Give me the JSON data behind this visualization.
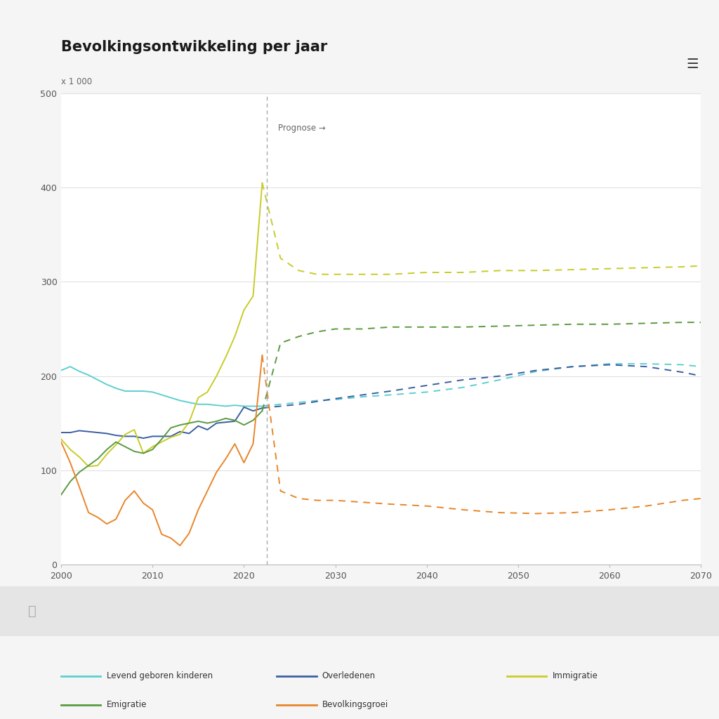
{
  "title": "Bevolkingsontwikkeling per jaar",
  "ylabel": "x 1 000",
  "ylim": [
    0,
    500
  ],
  "xlim": [
    2000,
    2070
  ],
  "yticks": [
    0,
    100,
    200,
    300,
    400,
    500
  ],
  "xticks": [
    2000,
    2010,
    2020,
    2030,
    2040,
    2050,
    2060,
    2070
  ],
  "prognose_year": 2022.5,
  "prognose_label": "Prognose →",
  "background_color": "#f5f5f5",
  "plot_bg_color": "#ffffff",
  "grid_color": "#dddddd",
  "colors": {
    "levend_geboren": "#5ecfcf",
    "overledenen": "#3a5fa0",
    "immigratie": "#c8cc28",
    "emigratie": "#5a9a40",
    "bevolkingsgroei": "#e8862a"
  },
  "legend_labels": [
    "Levend geboren kinderen",
    "Overledenen",
    "Immigratie",
    "Emigratie",
    "Bevolkingsgroei"
  ],
  "historical": {
    "years": [
      2000,
      2001,
      2002,
      2003,
      2004,
      2005,
      2006,
      2007,
      2008,
      2009,
      2010,
      2011,
      2012,
      2013,
      2014,
      2015,
      2016,
      2017,
      2018,
      2019,
      2020,
      2021,
      2022
    ],
    "levend_geboren": [
      206,
      210,
      205,
      201,
      196,
      191,
      187,
      184,
      184,
      184,
      183,
      180,
      177,
      174,
      172,
      170,
      170,
      169,
      168,
      169,
      168,
      168,
      168
    ],
    "overledenen": [
      140,
      140,
      142,
      141,
      140,
      139,
      137,
      136,
      136,
      134,
      136,
      136,
      136,
      141,
      139,
      147,
      143,
      150,
      151,
      152,
      167,
      163,
      166
    ],
    "immigratie": [
      133,
      122,
      114,
      104,
      105,
      117,
      127,
      138,
      143,
      118,
      125,
      130,
      135,
      138,
      151,
      177,
      183,
      200,
      220,
      242,
      270,
      285,
      405
    ],
    "emigratie": [
      74,
      88,
      98,
      105,
      112,
      122,
      130,
      125,
      120,
      118,
      122,
      133,
      145,
      148,
      150,
      152,
      150,
      152,
      155,
      153,
      148,
      153,
      163
    ],
    "bevolkingsgroei": [
      130,
      108,
      82,
      55,
      50,
      43,
      48,
      68,
      78,
      65,
      58,
      32,
      28,
      20,
      33,
      58,
      78,
      98,
      112,
      128,
      108,
      128,
      222
    ]
  },
  "forecast": {
    "years": [
      2022,
      2024,
      2026,
      2028,
      2030,
      2033,
      2036,
      2040,
      2044,
      2048,
      2052,
      2056,
      2060,
      2064,
      2068,
      2070
    ],
    "levend_geboren": [
      168,
      170,
      172,
      174,
      175,
      178,
      180,
      183,
      188,
      196,
      205,
      210,
      213,
      213,
      212,
      210
    ],
    "overledenen": [
      166,
      168,
      170,
      173,
      176,
      180,
      184,
      190,
      196,
      200,
      206,
      210,
      212,
      210,
      204,
      200
    ],
    "immigratie": [
      405,
      325,
      312,
      308,
      308,
      308,
      308,
      310,
      310,
      312,
      312,
      313,
      314,
      315,
      316,
      317
    ],
    "emigratie": [
      163,
      235,
      242,
      247,
      250,
      250,
      252,
      252,
      252,
      253,
      254,
      255,
      255,
      256,
      257,
      257
    ],
    "bevolkingsgroei": [
      222,
      78,
      70,
      68,
      68,
      66,
      64,
      62,
      58,
      55,
      54,
      55,
      58,
      62,
      68,
      70
    ]
  }
}
